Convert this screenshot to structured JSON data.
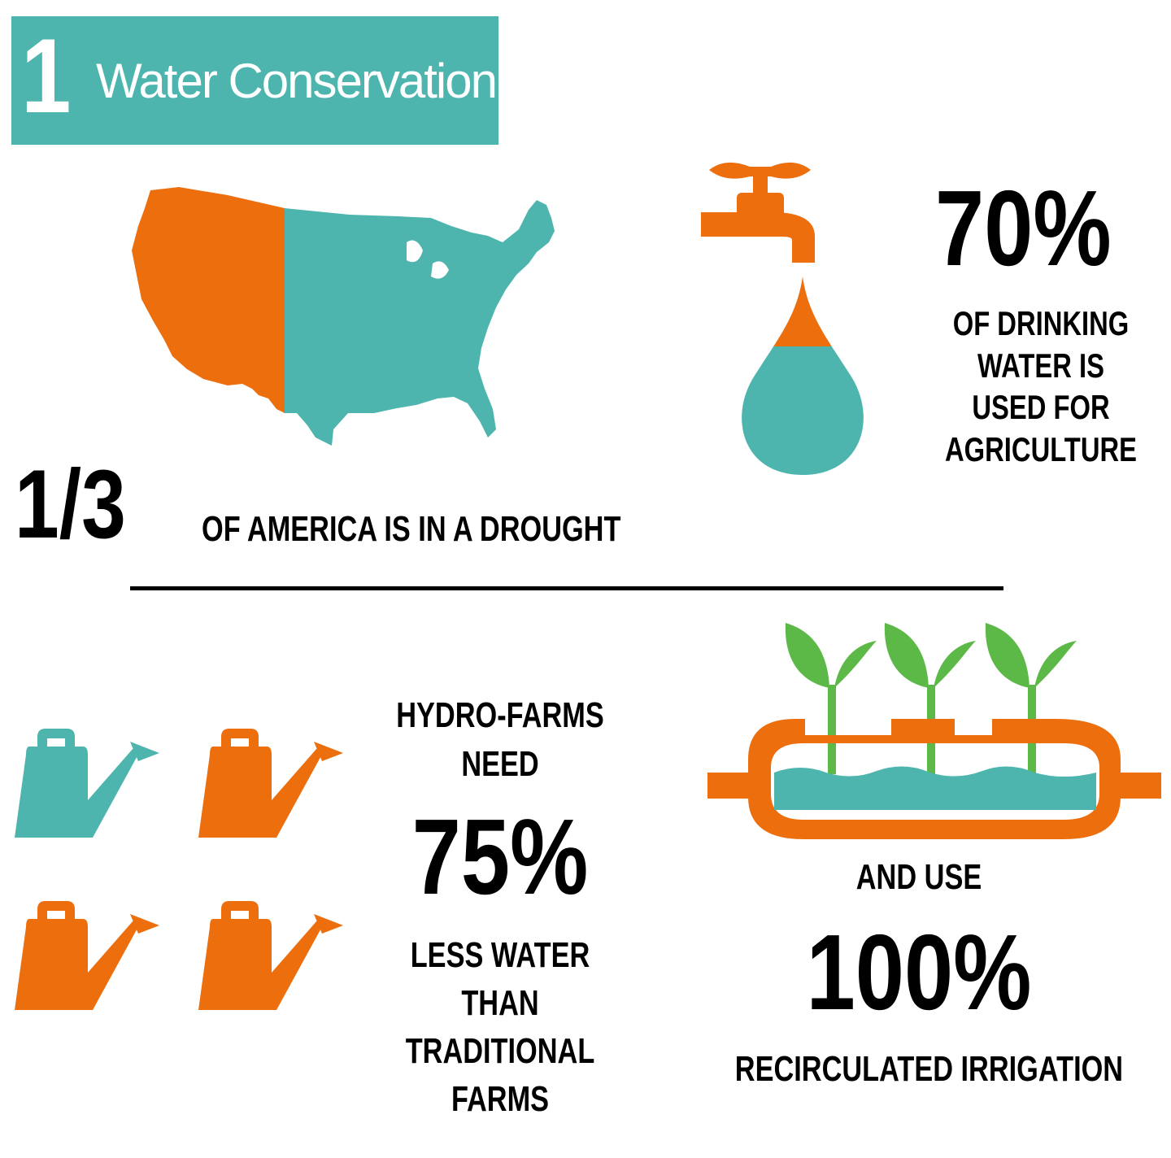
{
  "header": {
    "number": "1",
    "title": "Water Conservation"
  },
  "drought": {
    "stat": "1/3",
    "caption": "OF AMERICA IS IN A DROUGHT"
  },
  "agriculture": {
    "stat": "70%",
    "caption_lines": [
      "OF DRINKING",
      "WATER IS",
      "USED FOR",
      "AGRICULTURE"
    ]
  },
  "hydrofarms": {
    "intro_lines": [
      "HYDRO-FARMS",
      "NEED"
    ],
    "stat": "75%",
    "caption_lines": [
      "LESS WATER",
      "THAN TRADITIONAL",
      "FARMS"
    ]
  },
  "irrigation": {
    "intro": "AND USE",
    "stat": "100%",
    "caption": "RECIRCULATED IRRIGATION"
  },
  "colors": {
    "teal": "#4db5ae",
    "orange": "#ed6e0d",
    "green": "#5cb947",
    "black": "#000000"
  },
  "icons": [
    "us-map-icon",
    "faucet-icon",
    "water-drop-icon",
    "watering-can-icon",
    "hydroponic-tank-icon",
    "seedling-icon"
  ]
}
